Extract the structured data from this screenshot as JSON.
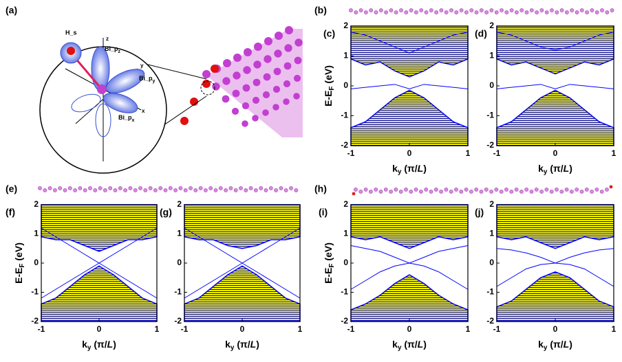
{
  "figure": {
    "panel_labels": {
      "a": "(a)",
      "b": "(b)",
      "e": "(e)",
      "h": "(h)"
    },
    "orbitals": {
      "h": "H_s",
      "z": "z",
      "y": "y",
      "x": "x",
      "pz": {
        "text": "Bi_p",
        "sub": "z"
      },
      "py": {
        "text": "Bi_p",
        "sub": "y"
      },
      "px": {
        "text": "Bi_p",
        "sub": "x"
      }
    }
  },
  "chart_data": [
    {
      "type": "band",
      "label": "(c)",
      "xlim": [
        -1,
        1
      ],
      "ylim": [
        -2,
        2
      ],
      "xticks": [
        -1,
        0,
        1
      ],
      "yticks": [
        -2,
        -1,
        0,
        1,
        2
      ],
      "ylabel": {
        "main": "E-E",
        "sub": "F",
        "unit": " (eV)"
      },
      "xlabel": {
        "main": "k",
        "sub": "y",
        "rest": " (π/",
        "italic": "L",
        "close": ")"
      },
      "x": [
        -1,
        -0.75,
        -0.5,
        -0.25,
        0,
        0.25,
        0.5,
        0.75,
        1
      ],
      "series": [
        {
          "color": "#0000ff",
          "region": "below",
          "values": [
            -1.4,
            -1.2,
            -0.8,
            -0.4,
            -0.15,
            -0.4,
            -0.8,
            -1.2,
            -1.4
          ]
        },
        {
          "color": "#0000ff",
          "region": "above",
          "values": [
            0.9,
            0.7,
            0.8,
            0.5,
            0.3,
            0.5,
            0.8,
            0.7,
            0.9
          ]
        },
        {
          "color": "#0000ff",
          "values": [
            -0.1,
            -0.05,
            0,
            0.05,
            -0.1,
            0.05,
            0,
            -0.05,
            -0.1
          ]
        },
        {
          "color": "#0000ff",
          "values": [
            1.8,
            1.7,
            1.5,
            1.3,
            1.1,
            1.3,
            1.5,
            1.7,
            1.8
          ]
        }
      ]
    },
    {
      "type": "band",
      "label": "(d)",
      "xlim": [
        -1,
        1
      ],
      "ylim": [
        -2,
        2
      ],
      "xticks": [
        -1,
        0,
        1
      ],
      "yticks": [
        -2,
        -1,
        0,
        1,
        2
      ],
      "xlabel": {
        "main": "k",
        "sub": "y",
        "rest": " (π/",
        "italic": "L",
        "close": ")"
      },
      "x": [
        -1,
        -0.75,
        -0.5,
        -0.25,
        0,
        0.25,
        0.5,
        0.75,
        1
      ],
      "series": [
        {
          "color": "#0000ff",
          "region": "below",
          "values": [
            -1.4,
            -1.2,
            -0.8,
            -0.4,
            -0.15,
            -0.4,
            -0.8,
            -1.2,
            -1.4
          ]
        },
        {
          "color": "#0000ff",
          "region": "above",
          "values": [
            0.9,
            0.7,
            0.8,
            0.6,
            0.4,
            0.6,
            0.8,
            0.7,
            0.9
          ]
        },
        {
          "color": "#0000ff",
          "values": [
            -0.1,
            -0.05,
            0,
            0.05,
            -0.1,
            0.05,
            0,
            -0.05,
            -0.1
          ]
        },
        {
          "color": "#0000ff",
          "values": [
            1.8,
            1.7,
            1.5,
            1.3,
            1.2,
            1.3,
            1.5,
            1.7,
            1.8
          ]
        }
      ]
    },
    {
      "type": "band",
      "label": "(f)",
      "xlim": [
        -1,
        1
      ],
      "ylim": [
        -2,
        2
      ],
      "xticks": [
        -1,
        0,
        1
      ],
      "yticks": [
        -2,
        -1,
        0,
        1,
        2
      ],
      "ylabel": {
        "main": "E-E",
        "sub": "F",
        "unit": " (eV)"
      },
      "xlabel": {
        "main": "k",
        "sub": "y",
        "rest": " (π/",
        "italic": "L",
        "close": ")"
      },
      "x": [
        -1,
        -0.75,
        -0.5,
        -0.25,
        0,
        0.25,
        0.5,
        0.75,
        1
      ],
      "series": [
        {
          "color": "#0000ff",
          "region": "below",
          "values": [
            -1.4,
            -1.2,
            -0.8,
            -0.4,
            -0.1,
            -0.4,
            -0.8,
            -1.2,
            -1.4
          ]
        },
        {
          "color": "#0000ff",
          "region": "above",
          "values": [
            0.9,
            0.8,
            0.8,
            0.6,
            0.4,
            0.6,
            0.8,
            0.8,
            0.9
          ]
        },
        {
          "color": "#0000ff",
          "values": [
            -1.2,
            -0.9,
            -0.6,
            -0.3,
            0,
            0.3,
            0.6,
            0.9,
            1.2
          ]
        },
        {
          "color": "#0000ff",
          "values": [
            1.2,
            0.9,
            0.6,
            0.3,
            0,
            -0.3,
            -0.6,
            -0.9,
            -1.2
          ]
        }
      ]
    },
    {
      "type": "band",
      "label": "(g)",
      "xlim": [
        -1,
        1
      ],
      "ylim": [
        -2,
        2
      ],
      "xticks": [
        -1,
        0,
        1
      ],
      "yticks": [
        -2,
        -1,
        0,
        1,
        2
      ],
      "xlabel": {
        "main": "k",
        "sub": "y",
        "rest": " (π/",
        "italic": "L",
        "close": ")"
      },
      "x": [
        -1,
        -0.75,
        -0.5,
        -0.25,
        0,
        0.25,
        0.5,
        0.75,
        1
      ],
      "series": [
        {
          "color": "#0000ff",
          "region": "below",
          "values": [
            -1.4,
            -1.2,
            -0.8,
            -0.4,
            -0.1,
            -0.4,
            -0.8,
            -1.2,
            -1.4
          ]
        },
        {
          "color": "#0000ff",
          "region": "above",
          "values": [
            0.9,
            0.8,
            0.8,
            0.6,
            0.5,
            0.6,
            0.8,
            0.8,
            0.9
          ]
        },
        {
          "color": "#0000ff",
          "values": [
            -1.2,
            -0.9,
            -0.6,
            -0.3,
            0,
            0.3,
            0.6,
            0.9,
            1.2
          ]
        },
        {
          "color": "#0000ff",
          "values": [
            1.2,
            0.9,
            0.6,
            0.3,
            0,
            -0.3,
            -0.6,
            -0.9,
            -1.2
          ]
        }
      ]
    },
    {
      "type": "band",
      "label": "(i)",
      "xlim": [
        -1,
        1
      ],
      "ylim": [
        -2,
        2
      ],
      "xticks": [
        -1,
        0,
        1
      ],
      "yticks": [
        -2,
        -1,
        0,
        1,
        2
      ],
      "ylabel": {
        "main": "E-E",
        "sub": "F",
        "unit": " (eV)"
      },
      "xlabel": {
        "main": "k",
        "sub": "y",
        "rest": " (π/",
        "italic": "L",
        "close": ")"
      },
      "x": [
        -1,
        -0.75,
        -0.5,
        -0.25,
        0,
        0.25,
        0.5,
        0.75,
        1
      ],
      "series": [
        {
          "color": "#0000ff",
          "region": "below",
          "values": [
            -1.6,
            -1.4,
            -1.1,
            -0.7,
            -0.4,
            -0.7,
            -1.1,
            -1.4,
            -1.6
          ]
        },
        {
          "color": "#0000ff",
          "region": "above",
          "values": [
            0.9,
            0.8,
            0.9,
            0.7,
            0.5,
            0.7,
            0.9,
            0.8,
            0.9
          ]
        },
        {
          "color": "#0000ff",
          "values": [
            -0.9,
            -0.6,
            -0.3,
            -0.1,
            0,
            0.2,
            0.4,
            0.5,
            0.6
          ]
        },
        {
          "color": "#0000ff",
          "values": [
            0.6,
            0.5,
            0.4,
            0.2,
            0,
            -0.1,
            -0.3,
            -0.6,
            -0.9
          ]
        }
      ]
    },
    {
      "type": "band",
      "label": "(j)",
      "xlim": [
        -1,
        1
      ],
      "ylim": [
        -2,
        2
      ],
      "xticks": [
        -1,
        0,
        1
      ],
      "yticks": [
        -2,
        -1,
        0,
        1,
        2
      ],
      "xlabel": {
        "main": "k",
        "sub": "y",
        "rest": " (π/",
        "italic": "L",
        "close": ")"
      },
      "x": [
        -1,
        -0.75,
        -0.5,
        -0.25,
        0,
        0.25,
        0.5,
        0.75,
        1
      ],
      "series": [
        {
          "color": "#0000ff",
          "region": "below",
          "values": [
            -1.5,
            -1.3,
            -0.9,
            -0.5,
            -0.3,
            -0.5,
            -0.9,
            -1.3,
            -1.5
          ]
        },
        {
          "color": "#0000ff",
          "region": "above",
          "values": [
            0.9,
            0.8,
            0.9,
            0.7,
            0.5,
            0.7,
            0.9,
            0.8,
            0.9
          ]
        },
        {
          "color": "#0000ff",
          "values": [
            -0.8,
            -0.5,
            -0.2,
            -0.05,
            0,
            0.2,
            0.35,
            0.45,
            0.5
          ]
        },
        {
          "color": "#0000ff",
          "values": [
            0.5,
            0.45,
            0.35,
            0.2,
            0,
            -0.05,
            -0.2,
            -0.5,
            -0.8
          ]
        }
      ]
    }
  ]
}
